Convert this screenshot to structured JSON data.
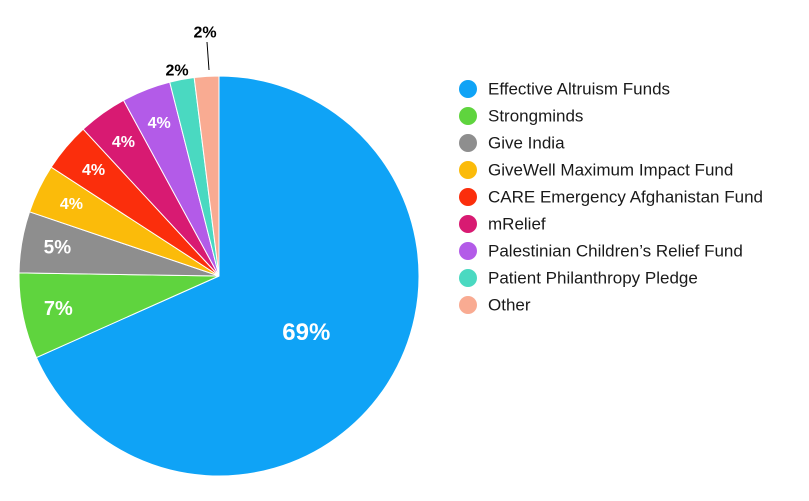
{
  "chart_data": {
    "type": "pie",
    "title": "",
    "start_angle": "12 o'clock",
    "direction": "clockwise",
    "legend_position": "right",
    "slices": [
      {
        "name": "Effective Altruism Funds",
        "value": 69,
        "label": "69%",
        "color": "#0fa3f6"
      },
      {
        "name": "Strongminds",
        "value": 7,
        "label": "7%",
        "color": "#5fd43e"
      },
      {
        "name": "Give India",
        "value": 5,
        "label": "5%",
        "color": "#8e8e8e"
      },
      {
        "name": "GiveWell Maximum Impact Fund",
        "value": 4,
        "label": "4%",
        "color": "#fbbb0a"
      },
      {
        "name": "CARE Emergency Afghanistan Fund",
        "value": 4,
        "label": "4%",
        "color": "#fb2e0c"
      },
      {
        "name": "mRelief",
        "value": 4,
        "label": "4%",
        "color": "#d81a72"
      },
      {
        "name": "Palestinian Children’s Relief Fund",
        "value": 4,
        "label": "4%",
        "color": "#b35be8"
      },
      {
        "name": "Patient Philanthropy Pledge",
        "value": 2,
        "label": "2%",
        "color": "#4ad9c1"
      },
      {
        "name": "Other",
        "value": 2,
        "label": "2%",
        "color": "#f9ab92"
      }
    ]
  }
}
